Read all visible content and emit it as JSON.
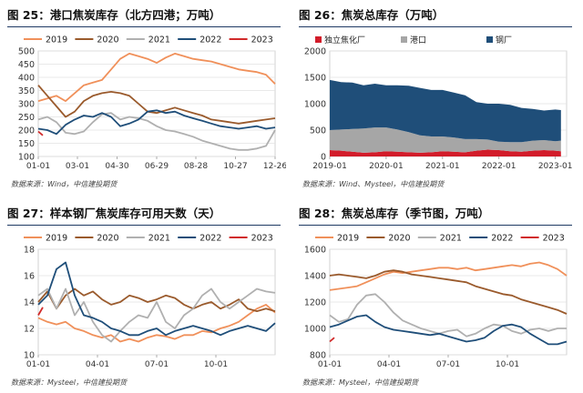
{
  "panels": [
    {
      "title": "图 25：港口焦炭库存（北方四港；万吨）",
      "source": "数据来源：Wind，中信建投期货"
    },
    {
      "title": "图 26：焦炭总库存（万吨）",
      "source": "数据来源：Wind、Mysteel，中信建投期货"
    },
    {
      "title": "图 27：样本钢厂焦炭库存可用天数（天）",
      "source": "数据来源：Mysteel，中信建投期货"
    },
    {
      "title": "图 28：焦炭总库存（季节图，万吨）",
      "source": "数据来源：Mysteel，中信建投期货"
    }
  ],
  "colors": {
    "2019": "#f0905a",
    "2020": "#9a5a2c",
    "2021": "#b0b0b0",
    "2022": "#1f4e79",
    "2023": "#d12a2a",
    "独立焦化厂": "#d21c2a",
    "港口": "#a6a6a6",
    "钢厂": "#1f4e79",
    "title_rule": "#1f3a64"
  },
  "chart_data": [
    {
      "type": "line",
      "title": "",
      "legend_position": "top",
      "grid": true,
      "xlim": [
        0,
        52
      ],
      "ylim": [
        100,
        500
      ],
      "yticks": [
        100,
        150,
        200,
        250,
        300,
        350,
        400,
        450,
        500
      ],
      "x_tick_positions": [
        0,
        8.6,
        17.3,
        26,
        34.6,
        43.3,
        52
      ],
      "x_tick_labels": [
        "01-01",
        "03-01",
        "04-30",
        "06-29",
        "08-28",
        "10-27",
        "12-26"
      ],
      "series": [
        {
          "name": "2019",
          "x": [
            0,
            2,
            4,
            6,
            8,
            10,
            12,
            14,
            16,
            18,
            20,
            22,
            24,
            26,
            28,
            30,
            32,
            34,
            36,
            38,
            40,
            42,
            44,
            46,
            48,
            50,
            52
          ],
          "values": [
            310,
            320,
            330,
            310,
            340,
            370,
            380,
            390,
            430,
            470,
            490,
            480,
            470,
            455,
            475,
            490,
            480,
            470,
            465,
            460,
            450,
            440,
            430,
            425,
            420,
            410,
            375
          ]
        },
        {
          "name": "2020",
          "x": [
            0,
            2,
            4,
            6,
            8,
            10,
            12,
            14,
            16,
            18,
            20,
            22,
            24,
            26,
            28,
            30,
            32,
            34,
            36,
            38,
            40,
            42,
            44,
            46,
            48,
            50,
            52
          ],
          "values": [
            370,
            330,
            290,
            250,
            270,
            310,
            330,
            340,
            345,
            340,
            330,
            300,
            270,
            265,
            275,
            285,
            275,
            265,
            255,
            240,
            235,
            230,
            225,
            230,
            235,
            240,
            245
          ]
        },
        {
          "name": "2021",
          "x": [
            0,
            2,
            4,
            6,
            8,
            10,
            12,
            14,
            16,
            18,
            20,
            22,
            24,
            26,
            28,
            30,
            32,
            34,
            36,
            38,
            40,
            42,
            44,
            46,
            48,
            50,
            52
          ],
          "values": [
            240,
            250,
            230,
            190,
            185,
            195,
            230,
            260,
            265,
            240,
            250,
            245,
            235,
            215,
            200,
            195,
            185,
            175,
            160,
            150,
            140,
            130,
            125,
            125,
            130,
            140,
            200
          ]
        },
        {
          "name": "2022",
          "x": [
            0,
            2,
            4,
            6,
            8,
            10,
            12,
            14,
            16,
            18,
            20,
            22,
            24,
            26,
            28,
            30,
            32,
            34,
            36,
            38,
            40,
            42,
            44,
            46,
            48,
            50,
            52
          ],
          "values": [
            205,
            200,
            185,
            220,
            240,
            255,
            250,
            265,
            250,
            215,
            225,
            240,
            270,
            275,
            265,
            270,
            255,
            245,
            235,
            225,
            215,
            210,
            205,
            210,
            215,
            205,
            210
          ]
        },
        {
          "name": "2023",
          "x": [
            0,
            1
          ],
          "values": [
            195,
            180
          ]
        }
      ]
    },
    {
      "type": "area",
      "stacked": true,
      "title": "",
      "legend_position": "top",
      "grid": true,
      "xlim": [
        2019.0,
        2023.2
      ],
      "ylim": [
        0,
        2000
      ],
      "yticks": [
        0,
        500,
        1000,
        1500,
        2000
      ],
      "x_tick_positions": [
        2019.0,
        2020.0,
        2021.0,
        2022.0,
        2023.0
      ],
      "x_tick_labels": [
        "2019-01",
        "2020-01",
        "2021-01",
        "2022-01",
        "2023-01"
      ],
      "x": [
        2019.0,
        2019.2,
        2019.4,
        2019.6,
        2019.8,
        2020.0,
        2020.2,
        2020.4,
        2020.6,
        2020.8,
        2021.0,
        2021.2,
        2021.4,
        2021.6,
        2021.8,
        2022.0,
        2022.2,
        2022.4,
        2022.6,
        2022.8,
        2023.0,
        2023.1
      ],
      "series": [
        {
          "name": "独立焦化厂",
          "values": [
            120,
            110,
            90,
            70,
            80,
            100,
            90,
            80,
            70,
            80,
            100,
            90,
            80,
            110,
            130,
            120,
            100,
            90,
            110,
            120,
            110,
            100
          ]
        },
        {
          "name": "港口",
          "values": [
            380,
            400,
            430,
            460,
            470,
            450,
            420,
            380,
            330,
            300,
            280,
            270,
            250,
            220,
            190,
            160,
            170,
            180,
            190,
            190,
            180,
            200
          ]
        },
        {
          "name": "钢厂",
          "values": [
            950,
            900,
            880,
            820,
            830,
            800,
            840,
            880,
            900,
            880,
            880,
            850,
            830,
            700,
            680,
            720,
            710,
            650,
            600,
            560,
            600,
            580
          ]
        }
      ]
    },
    {
      "type": "line",
      "title": "",
      "legend_position": "top",
      "grid": true,
      "xlim": [
        0,
        52
      ],
      "ylim": [
        10,
        18
      ],
      "yticks": [
        10,
        12,
        14,
        16,
        18
      ],
      "x_tick_positions": [
        0,
        13,
        26,
        39
      ],
      "x_tick_labels": [
        "01-01",
        "04-01",
        "07-01",
        "10-01"
      ],
      "series": [
        {
          "name": "2019",
          "x": [
            0,
            2,
            4,
            6,
            8,
            10,
            12,
            14,
            16,
            18,
            20,
            22,
            24,
            26,
            28,
            30,
            32,
            34,
            36,
            38,
            40,
            42,
            44,
            46,
            48,
            50,
            52
          ],
          "values": [
            12.8,
            12.5,
            12.3,
            12.5,
            12.0,
            11.8,
            11.5,
            11.3,
            11.5,
            11.0,
            11.2,
            11.0,
            11.3,
            11.5,
            11.4,
            11.2,
            11.5,
            11.5,
            11.8,
            11.7,
            12.0,
            12.2,
            12.5,
            13.0,
            13.5,
            13.8,
            13.2
          ]
        },
        {
          "name": "2020",
          "x": [
            0,
            2,
            4,
            6,
            8,
            10,
            12,
            14,
            16,
            18,
            20,
            22,
            24,
            26,
            28,
            30,
            32,
            34,
            36,
            38,
            40,
            42,
            44,
            46,
            48,
            50,
            52
          ],
          "values": [
            14.0,
            14.8,
            13.5,
            14.5,
            15.0,
            14.5,
            14.8,
            14.2,
            13.8,
            14.0,
            14.5,
            14.3,
            14.0,
            14.2,
            14.5,
            14.3,
            13.8,
            13.5,
            13.8,
            14.0,
            13.5,
            13.8,
            14.2,
            13.5,
            13.3,
            13.5,
            13.3
          ]
        },
        {
          "name": "2021",
          "x": [
            0,
            2,
            4,
            6,
            8,
            10,
            12,
            14,
            16,
            18,
            20,
            22,
            24,
            26,
            28,
            30,
            32,
            34,
            36,
            38,
            40,
            42,
            44,
            46,
            48,
            50,
            52
          ],
          "values": [
            14.5,
            15.0,
            13.5,
            15.0,
            13.0,
            14.0,
            12.5,
            11.5,
            11.0,
            11.8,
            12.5,
            13.0,
            12.8,
            14.0,
            12.5,
            12.0,
            13.0,
            13.5,
            14.5,
            15.0,
            14.0,
            13.5,
            14.0,
            14.5,
            15.0,
            14.8,
            14.7
          ]
        },
        {
          "name": "2022",
          "x": [
            0,
            2,
            4,
            6,
            8,
            10,
            12,
            14,
            16,
            18,
            20,
            22,
            24,
            26,
            28,
            30,
            32,
            34,
            36,
            38,
            40,
            42,
            44,
            46,
            48,
            50,
            52
          ],
          "values": [
            13.8,
            14.5,
            16.5,
            17.0,
            14.5,
            13.0,
            12.8,
            12.5,
            12.0,
            11.8,
            11.5,
            11.5,
            11.8,
            12.0,
            11.5,
            11.8,
            12.0,
            12.2,
            12.0,
            11.8,
            11.5,
            11.8,
            12.0,
            12.2,
            12.0,
            11.8,
            12.4
          ]
        },
        {
          "name": "2023",
          "x": [
            0,
            1
          ],
          "values": [
            13.0,
            13.6
          ]
        }
      ]
    },
    {
      "type": "line",
      "title": "",
      "legend_position": "top",
      "grid": true,
      "xlim": [
        0,
        52
      ],
      "ylim": [
        800,
        1600
      ],
      "yticks": [
        800,
        1000,
        1200,
        1400,
        1600
      ],
      "x_tick_positions": [
        0,
        13,
        26,
        39
      ],
      "x_tick_labels": [
        "01-01",
        "04-01",
        "07-01",
        "10-01"
      ],
      "series": [
        {
          "name": "2019",
          "x": [
            0,
            2,
            4,
            6,
            8,
            10,
            12,
            14,
            16,
            18,
            20,
            22,
            24,
            26,
            28,
            30,
            32,
            34,
            36,
            38,
            40,
            42,
            44,
            46,
            48,
            50,
            52
          ],
          "values": [
            1290,
            1300,
            1310,
            1320,
            1350,
            1380,
            1410,
            1430,
            1420,
            1430,
            1440,
            1450,
            1460,
            1460,
            1450,
            1460,
            1440,
            1450,
            1460,
            1470,
            1480,
            1470,
            1490,
            1500,
            1480,
            1450,
            1400
          ]
        },
        {
          "name": "2020",
          "x": [
            0,
            2,
            4,
            6,
            8,
            10,
            12,
            14,
            16,
            18,
            20,
            22,
            24,
            26,
            28,
            30,
            32,
            34,
            36,
            38,
            40,
            42,
            44,
            46,
            48,
            50,
            52
          ],
          "values": [
            1400,
            1410,
            1400,
            1390,
            1380,
            1400,
            1430,
            1440,
            1430,
            1410,
            1400,
            1390,
            1380,
            1370,
            1360,
            1350,
            1320,
            1300,
            1280,
            1260,
            1250,
            1220,
            1200,
            1180,
            1160,
            1140,
            1110
          ]
        },
        {
          "name": "2021",
          "x": [
            0,
            2,
            4,
            6,
            8,
            10,
            12,
            14,
            16,
            18,
            20,
            22,
            24,
            26,
            28,
            30,
            32,
            34,
            36,
            38,
            40,
            42,
            44,
            46,
            48,
            50,
            52
          ],
          "values": [
            1100,
            1050,
            1070,
            1180,
            1250,
            1260,
            1200,
            1120,
            1060,
            1030,
            1000,
            980,
            960,
            980,
            990,
            940,
            960,
            1000,
            1030,
            1020,
            980,
            960,
            990,
            1000,
            980,
            1000,
            1000
          ]
        },
        {
          "name": "2022",
          "x": [
            0,
            2,
            4,
            6,
            8,
            10,
            12,
            14,
            16,
            18,
            20,
            22,
            24,
            26,
            28,
            30,
            32,
            34,
            36,
            38,
            40,
            42,
            44,
            46,
            48,
            50,
            52
          ],
          "values": [
            1010,
            1030,
            1060,
            1090,
            1100,
            1050,
            1010,
            990,
            980,
            970,
            960,
            950,
            960,
            940,
            920,
            900,
            910,
            930,
            980,
            1020,
            1030,
            1010,
            960,
            920,
            880,
            880,
            900
          ]
        },
        {
          "name": "2023",
          "x": [
            0,
            1
          ],
          "values": [
            900,
            930
          ]
        }
      ]
    }
  ]
}
